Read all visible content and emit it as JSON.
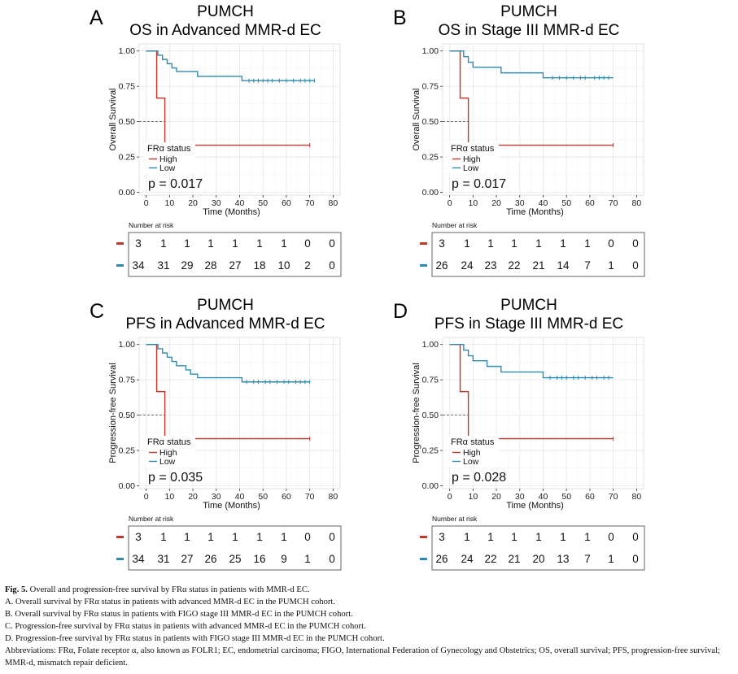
{
  "chart_data": [
    {
      "type": "line",
      "panel_letter": "A",
      "title_line1": "PUMCH",
      "title_line2": "OS in Advanced MMR-d EC",
      "ylabel": "Overall Survival",
      "xlabel": "Time (Months)",
      "xlim": [
        -3,
        83
      ],
      "ylim": [
        -0.02,
        1.05
      ],
      "x_ticks": [
        0,
        10,
        20,
        30,
        40,
        50,
        60,
        70,
        80
      ],
      "y_ticks": [
        0,
        0.25,
        0.5,
        0.75,
        1.0
      ],
      "y_tick_labels": [
        "0.00",
        "0.25",
        "0.50",
        "0.75",
        "1.00"
      ],
      "median_y": 0.5,
      "legend_title": "FRα status",
      "p_value": "p = 0.017",
      "series": [
        {
          "name": "High",
          "color": "#c0392b",
          "steps": [
            [
              0,
              1.0
            ],
            [
              4.5,
              0.6667
            ],
            [
              8,
              0.3333
            ],
            [
              70,
              0.3333
            ]
          ],
          "censors": [
            70
          ]
        },
        {
          "name": "Low",
          "color": "#2e8bb0",
          "steps": [
            [
              0,
              1.0
            ],
            [
              5,
              0.97
            ],
            [
              7,
              0.94
            ],
            [
              9,
              0.91
            ],
            [
              11,
              0.88
            ],
            [
              13,
              0.855
            ],
            [
              22,
              0.82
            ],
            [
              41,
              0.79
            ],
            [
              72,
              0.79
            ]
          ],
          "censors": [
            44,
            46,
            48,
            50,
            52,
            54,
            57,
            60,
            63,
            66,
            68,
            70,
            72
          ]
        }
      ],
      "risk_table": {
        "heading": "Number at risk",
        "rows": [
          {
            "name": "High",
            "color": "#c0392b",
            "values": [
              "3",
              "1",
              "1",
              "1",
              "1",
              "1",
              "1",
              "0",
              "0"
            ]
          },
          {
            "name": "Low",
            "color": "#2e8bb0",
            "values": [
              "34",
              "31",
              "29",
              "28",
              "27",
              "18",
              "10",
              "2",
              "0"
            ]
          }
        ]
      }
    },
    {
      "type": "line",
      "panel_letter": "B",
      "title_line1": "PUMCH",
      "title_line2": "OS in Stage III MMR-d EC",
      "ylabel": "Overall Survival",
      "xlabel": "Time (Months)",
      "xlim": [
        -3,
        83
      ],
      "ylim": [
        -0.02,
        1.05
      ],
      "x_ticks": [
        0,
        10,
        20,
        30,
        40,
        50,
        60,
        70,
        80
      ],
      "y_ticks": [
        0,
        0.25,
        0.5,
        0.75,
        1.0
      ],
      "y_tick_labels": [
        "0.00",
        "0.25",
        "0.50",
        "0.75",
        "1.00"
      ],
      "median_y": 0.5,
      "legend_title": "FRα status",
      "p_value": "p = 0.017",
      "series": [
        {
          "name": "High",
          "color": "#c0392b",
          "steps": [
            [
              0,
              1.0
            ],
            [
              4.5,
              0.6667
            ],
            [
              8,
              0.3333
            ],
            [
              70,
              0.3333
            ]
          ],
          "censors": [
            70
          ]
        },
        {
          "name": "Low",
          "color": "#2e8bb0",
          "steps": [
            [
              0,
              1.0
            ],
            [
              6,
              0.96
            ],
            [
              8,
              0.92
            ],
            [
              10,
              0.885
            ],
            [
              22,
              0.845
            ],
            [
              40,
              0.81
            ],
            [
              70,
              0.81
            ]
          ],
          "censors": [
            44,
            47,
            50,
            53,
            56,
            58,
            62,
            64,
            66,
            68
          ]
        }
      ],
      "risk_table": {
        "heading": "Number at risk",
        "rows": [
          {
            "name": "High",
            "color": "#c0392b",
            "values": [
              "3",
              "1",
              "1",
              "1",
              "1",
              "1",
              "1",
              "0",
              "0"
            ]
          },
          {
            "name": "Low",
            "color": "#2e8bb0",
            "values": [
              "26",
              "24",
              "23",
              "22",
              "21",
              "14",
              "7",
              "1",
              "0"
            ]
          }
        ]
      }
    },
    {
      "type": "line",
      "panel_letter": "C",
      "title_line1": "PUMCH",
      "title_line2": "PFS in Advanced MMR-d EC",
      "ylabel": "Progression-free Survival",
      "xlabel": "Time (Months)",
      "xlim": [
        -3,
        83
      ],
      "ylim": [
        -0.02,
        1.05
      ],
      "x_ticks": [
        0,
        10,
        20,
        30,
        40,
        50,
        60,
        70,
        80
      ],
      "y_ticks": [
        0,
        0.25,
        0.5,
        0.75,
        1.0
      ],
      "y_tick_labels": [
        "0.00",
        "0.25",
        "0.50",
        "0.75",
        "1.00"
      ],
      "median_y": 0.5,
      "legend_title": "FRα status",
      "p_value": "p = 0.035",
      "series": [
        {
          "name": "High",
          "color": "#c0392b",
          "steps": [
            [
              0,
              1.0
            ],
            [
              4.5,
              0.6667
            ],
            [
              8,
              0.3333
            ],
            [
              70,
              0.3333
            ]
          ],
          "censors": [
            70
          ]
        },
        {
          "name": "Low",
          "color": "#2e8bb0",
          "steps": [
            [
              0,
              1.0
            ],
            [
              5,
              0.97
            ],
            [
              7,
              0.94
            ],
            [
              9,
              0.91
            ],
            [
              11,
              0.88
            ],
            [
              13,
              0.85
            ],
            [
              17,
              0.82
            ],
            [
              19,
              0.79
            ],
            [
              22,
              0.765
            ],
            [
              41,
              0.735
            ],
            [
              70,
              0.735
            ]
          ],
          "censors": [
            43,
            46,
            48,
            51,
            53,
            56,
            59,
            61,
            64,
            66,
            68,
            70
          ]
        }
      ],
      "risk_table": {
        "heading": "Number at risk",
        "rows": [
          {
            "name": "High",
            "color": "#c0392b",
            "values": [
              "3",
              "1",
              "1",
              "1",
              "1",
              "1",
              "1",
              "0",
              "0"
            ]
          },
          {
            "name": "Low",
            "color": "#2e8bb0",
            "values": [
              "34",
              "31",
              "27",
              "26",
              "25",
              "16",
              "9",
              "1",
              "0"
            ]
          }
        ]
      }
    },
    {
      "type": "line",
      "panel_letter": "D",
      "title_line1": "PUMCH",
      "title_line2": "PFS in Stage III MMR-d EC",
      "ylabel": "Progression-free Survival",
      "xlabel": "Time (Months)",
      "xlim": [
        -3,
        83
      ],
      "ylim": [
        -0.02,
        1.05
      ],
      "x_ticks": [
        0,
        10,
        20,
        30,
        40,
        50,
        60,
        70,
        80
      ],
      "y_ticks": [
        0,
        0.25,
        0.5,
        0.75,
        1.0
      ],
      "y_tick_labels": [
        "0.00",
        "0.25",
        "0.50",
        "0.75",
        "1.00"
      ],
      "median_y": 0.5,
      "legend_title": "FRα status",
      "p_value": "p = 0.028",
      "series": [
        {
          "name": "High",
          "color": "#c0392b",
          "steps": [
            [
              0,
              1.0
            ],
            [
              4.5,
              0.6667
            ],
            [
              8,
              0.3333
            ],
            [
              70,
              0.3333
            ]
          ],
          "censors": [
            70
          ]
        },
        {
          "name": "Low",
          "color": "#2e8bb0",
          "steps": [
            [
              0,
              1.0
            ],
            [
              6,
              0.96
            ],
            [
              8,
              0.92
            ],
            [
              10,
              0.885
            ],
            [
              16,
              0.845
            ],
            [
              22,
              0.805
            ],
            [
              40,
              0.765
            ],
            [
              70,
              0.765
            ]
          ],
          "censors": [
            43,
            46,
            48,
            50,
            53,
            55,
            58,
            61,
            63,
            66,
            68
          ]
        }
      ],
      "risk_table": {
        "heading": "Number at risk",
        "rows": [
          {
            "name": "High",
            "color": "#c0392b",
            "values": [
              "3",
              "1",
              "1",
              "1",
              "1",
              "1",
              "1",
              "0",
              "0"
            ]
          },
          {
            "name": "Low",
            "color": "#2e8bb0",
            "values": [
              "26",
              "24",
              "22",
              "21",
              "20",
              "13",
              "7",
              "1",
              "0"
            ]
          }
        ]
      }
    }
  ],
  "caption": {
    "fig_label": "Fig. 5.",
    "fig_title": " Overall and progression-free survival by FRα status in patients with MMR-d EC.",
    "lines": [
      "A. Overall survival by FRα status in patients with advanced MMR-d EC in the PUMCH cohort.",
      "B. Overall survival by FRα status in patients with FIGO stage III MMR-d EC in the PUMCH cohort.",
      "C. Progression-free survival by FRα status in patients with advanced MMR-d EC in the PUMCH cohort.",
      "D. Progression-free survival by FRα status in patients with FIGO stage III MMR-d EC in the PUMCH cohort."
    ],
    "abbreviations": "Abbreviations: FRα, Folate receptor α, also known as FOLR1; EC, endometrial carcinoma; FIGO, International Federation of Gynecology and Obstetrics; OS, overall survival; PFS, progression-free survival; MMR-d, mismatch repair deficient."
  }
}
